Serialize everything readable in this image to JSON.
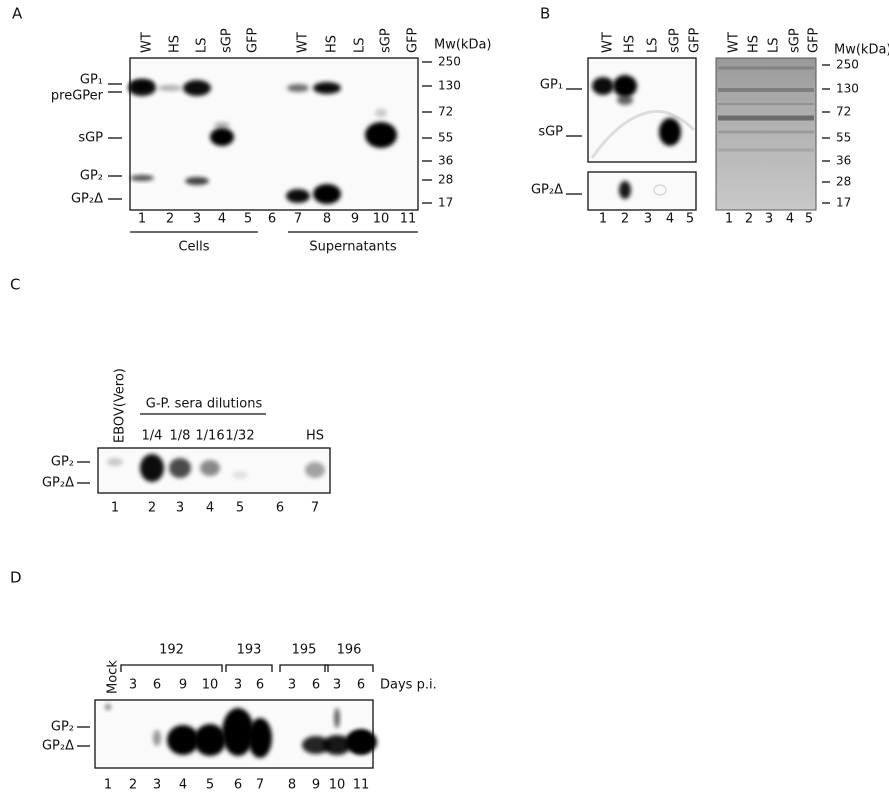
{
  "panel_a": {
    "label": "A",
    "lane_headers": [
      "WT",
      "HS",
      "LS",
      "sGP",
      "GFP",
      "WT",
      "HS",
      "LS",
      "sGP",
      "GFP"
    ],
    "mw_title": "Mw(kDa)",
    "mw_markers": [
      "250",
      "130",
      "72",
      "55",
      "36",
      "28",
      "17"
    ],
    "band_labels": [
      "GP₁",
      "preGPer",
      "sGP",
      "GP₂",
      "GP₂Δ"
    ],
    "lane_numbers": [
      "1",
      "2",
      "3",
      "4",
      "5",
      "6",
      "7",
      "8",
      "9",
      "10",
      "11"
    ],
    "groups": [
      "Cells",
      "Supernatants"
    ]
  },
  "panel_b": {
    "label": "B",
    "left_headers": [
      "WT",
      "HS",
      "LS",
      "sGP",
      "GFP"
    ],
    "band_labels": [
      "GP₁",
      "sGP",
      "GP₂Δ"
    ],
    "left_lane_numbers": [
      "1",
      "2",
      "3",
      "4",
      "5"
    ],
    "right_headers": [
      "WT",
      "HS",
      "LS",
      "sGP",
      "GFP"
    ],
    "right_lane_numbers": [
      "1",
      "2",
      "3",
      "4",
      "5"
    ],
    "mw_title": "Mw(kDa)",
    "mw_markers": [
      "250",
      "130",
      "72",
      "55",
      "36",
      "28",
      "17"
    ]
  },
  "panel_c": {
    "label": "C",
    "lane_header": "EBOV(Vero)",
    "dilution_title": "G-P. sera dilutions",
    "dilutions": [
      "1/4",
      "1/8",
      "1/16",
      "1/32"
    ],
    "serum_header": "HS",
    "band_labels": [
      "GP₂",
      "GP₂Δ"
    ],
    "lane_numbers": [
      "1",
      "2",
      "3",
      "4",
      "5",
      "6",
      "7"
    ]
  },
  "panel_d": {
    "label": "D",
    "mock_header": "Mock",
    "animals": [
      "192",
      "193",
      "195",
      "196"
    ],
    "days": [
      "3",
      "6",
      "9",
      "10",
      "3",
      "6",
      "3",
      "6",
      "3",
      "6"
    ],
    "days_title": "Days p.i.",
    "band_labels": [
      "GP₂",
      "GP₂Δ"
    ],
    "lane_numbers": [
      "1",
      "2",
      "3",
      "4",
      "5",
      "6",
      "7",
      "8",
      "9",
      "10",
      "11"
    ]
  }
}
